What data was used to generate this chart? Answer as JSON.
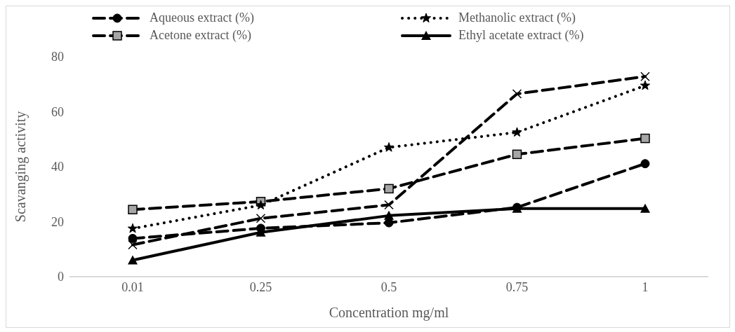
{
  "chart_data": {
    "type": "line",
    "xlabel": "Concentration mg/ml",
    "ylabel": "Scavanging activity",
    "categories": [
      "0.01",
      "0.25",
      "0.5",
      "0.75",
      "1"
    ],
    "series": [
      {
        "name": "Aqueous extract (%)",
        "color": "#000000",
        "marker": "circle",
        "line_style": "dashed",
        "values": [
          13.9,
          17.6,
          19.6,
          25.2,
          41.1
        ]
      },
      {
        "name": "Methanolic extract  (%)",
        "color": "#000000",
        "marker": "star",
        "line_style": "dotted",
        "values": [
          17.5,
          26,
          47,
          52.5,
          69.5
        ]
      },
      {
        "name": "Acetone extract (%)",
        "color": "#000000",
        "marker": "square",
        "line_style": "dashed",
        "values": [
          24.4,
          27.3,
          32,
          44.5,
          50.3
        ]
      },
      {
        "name": "Ethyl acetate extract (%)",
        "color": "#000000",
        "marker": "triangle",
        "line_style": "solid",
        "values": [
          6,
          16.1,
          22.2,
          24.8,
          24.8
        ]
      },
      {
        "color": "#000000",
        "marker": "cross",
        "line_style": "dashed",
        "values": [
          11.6,
          21.2,
          26.1,
          66.5,
          72.8
        ]
      }
    ],
    "ylim": [
      0,
      80
    ],
    "yticks": [
      0,
      20,
      40,
      60,
      80
    ],
    "grid": false,
    "legend": "top"
  }
}
